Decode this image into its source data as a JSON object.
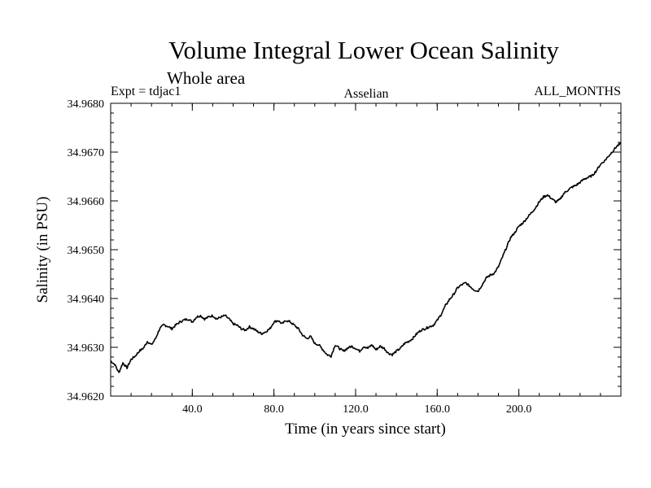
{
  "chart_data": {
    "type": "line",
    "title": "Volume Integral Lower Ocean Salinity",
    "subtitle": "Whole area",
    "header_left": "Expt = tdjac1",
    "header_center": "Asselian",
    "header_right": "ALL_MONTHS",
    "xlabel": "Time (in years since start)",
    "ylabel": "Salinity (in PSU)",
    "xlim": [
      0,
      250
    ],
    "ylim": [
      34.962,
      34.968
    ],
    "xticks": [
      40,
      80,
      120,
      160,
      200
    ],
    "xtick_labels": [
      "40.0",
      "80.0",
      "120.0",
      "160.0",
      "200.0"
    ],
    "yticks": [
      34.962,
      34.963,
      34.964,
      34.965,
      34.966,
      34.967,
      34.968
    ],
    "ytick_labels": [
      "34.9620",
      "34.9630",
      "34.9640",
      "34.9650",
      "34.9660",
      "34.9670",
      "34.9680"
    ],
    "series": [
      {
        "name": "Salinity",
        "x": [
          0,
          2,
          4,
          6,
          8,
          10,
          12,
          14,
          16,
          18,
          20,
          22,
          24,
          26,
          28,
          30,
          32,
          34,
          36,
          38,
          40,
          42,
          44,
          46,
          48,
          50,
          52,
          54,
          56,
          58,
          60,
          62,
          64,
          66,
          68,
          70,
          72,
          74,
          76,
          78,
          80,
          82,
          84,
          86,
          88,
          90,
          92,
          94,
          96,
          98,
          100,
          102,
          104,
          106,
          108,
          110,
          112,
          114,
          116,
          118,
          120,
          122,
          124,
          126,
          128,
          130,
          132,
          134,
          136,
          138,
          140,
          142,
          144,
          146,
          148,
          150,
          152,
          154,
          156,
          158,
          160,
          162,
          164,
          166,
          168,
          170,
          172,
          174,
          176,
          178,
          180,
          182,
          184,
          186,
          188,
          190,
          192,
          194,
          196,
          198,
          200,
          202,
          204,
          206,
          208,
          210,
          212,
          214,
          216,
          218,
          220,
          222,
          224,
          226,
          228,
          230,
          232,
          234,
          236,
          238,
          240,
          242,
          244,
          246,
          248,
          250
        ],
        "y": [
          34.96272,
          34.96265,
          34.96248,
          34.96268,
          34.96258,
          34.96275,
          34.96282,
          34.96292,
          34.96298,
          34.96312,
          34.96305,
          34.96318,
          34.96338,
          34.96346,
          34.96343,
          34.96338,
          34.96346,
          34.96352,
          34.96356,
          34.96358,
          34.96352,
          34.96362,
          34.96365,
          34.96358,
          34.96362,
          34.96365,
          34.96358,
          34.96362,
          34.96365,
          34.96358,
          34.96348,
          34.96345,
          34.96338,
          34.96335,
          34.96342,
          34.96338,
          34.96332,
          34.96328,
          34.96332,
          34.96338,
          34.96352,
          34.96355,
          34.96348,
          34.96355,
          34.96352,
          34.96345,
          34.96338,
          34.96325,
          34.96318,
          34.96322,
          34.96308,
          34.96305,
          34.96295,
          34.96285,
          34.96282,
          34.96305,
          34.96298,
          34.96292,
          34.96298,
          34.96302,
          34.96298,
          34.96292,
          34.96302,
          34.96298,
          34.96305,
          34.96295,
          34.96302,
          34.96298,
          34.96288,
          34.96285,
          34.96292,
          34.96298,
          34.96308,
          34.96312,
          34.96318,
          34.96328,
          34.96335,
          34.96338,
          34.96342,
          34.96345,
          34.96355,
          34.96368,
          34.96385,
          34.96398,
          34.96408,
          34.96422,
          34.96428,
          34.96432,
          34.96425,
          34.96418,
          34.96415,
          34.96428,
          34.96442,
          34.96448,
          34.96452,
          34.96465,
          34.96485,
          34.96505,
          34.96525,
          34.96535,
          34.96548,
          34.96555,
          34.96565,
          34.96575,
          34.96585,
          34.96598,
          34.96608,
          34.96612,
          34.96605,
          34.96598,
          34.96602,
          34.96615,
          34.96622,
          34.96628,
          34.96632,
          34.96638,
          34.96645,
          34.96648,
          34.96652,
          34.96662,
          34.96675,
          34.96682,
          34.96692,
          34.96702,
          34.96712,
          34.96718
        ]
      }
    ]
  }
}
